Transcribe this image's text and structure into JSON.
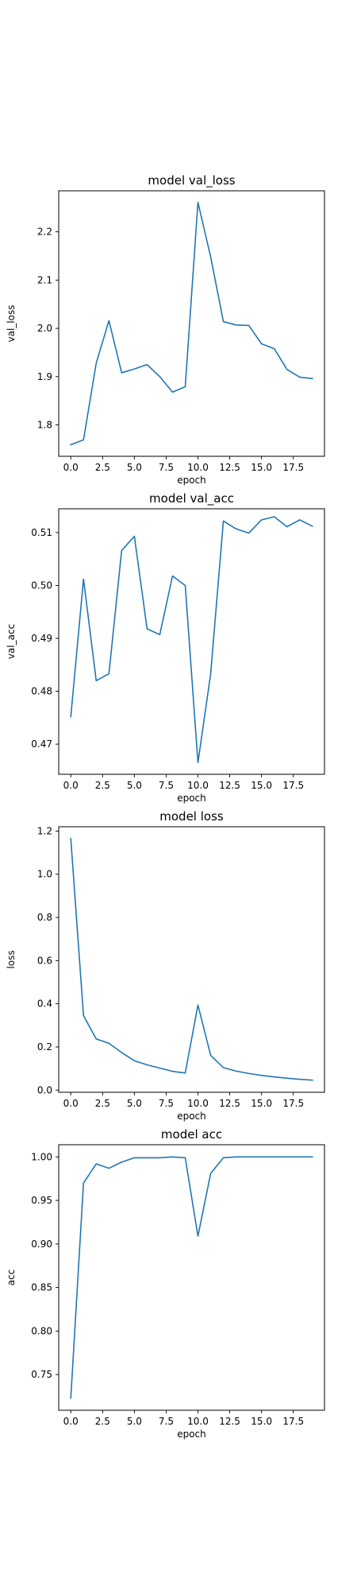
{
  "chart_data": [
    {
      "type": "line",
      "title": "model val_loss",
      "xlabel": "epoch",
      "ylabel": "val_loss",
      "xlim": [
        -0.95,
        19.95
      ],
      "ylim": [
        1.735,
        2.285
      ],
      "xticks": [
        0.0,
        2.5,
        5.0,
        7.5,
        10.0,
        12.5,
        15.0,
        17.5
      ],
      "xtick_labels": [
        "0.0",
        "2.5",
        "5.0",
        "7.5",
        "10.0",
        "12.5",
        "15.0",
        "17.5"
      ],
      "yticks": [
        1.8,
        1.9,
        2.0,
        2.1,
        2.2
      ],
      "ytick_labels": [
        "1.8",
        "1.9",
        "2.0",
        "2.1",
        "2.2"
      ],
      "series": [
        {
          "name": "val_loss",
          "color": "#1f77b4",
          "x": [
            0,
            1,
            2,
            3,
            4,
            5,
            6,
            7,
            8,
            9,
            10,
            11,
            12,
            13,
            14,
            15,
            16,
            17,
            18,
            19
          ],
          "values": [
            1.759,
            1.769,
            1.928,
            2.016,
            1.908,
            1.916,
            1.925,
            1.9,
            1.868,
            1.879,
            2.261,
            2.148,
            2.014,
            2.007,
            2.006,
            1.968,
            1.958,
            1.915,
            1.899,
            1.896
          ]
        }
      ]
    },
    {
      "type": "line",
      "title": "model val_acc",
      "xlabel": "epoch",
      "ylabel": "val_acc",
      "xlim": [
        -0.95,
        19.95
      ],
      "ylim": [
        0.4643,
        0.5145
      ],
      "xticks": [
        0.0,
        2.5,
        5.0,
        7.5,
        10.0,
        12.5,
        15.0,
        17.5
      ],
      "xtick_labels": [
        "0.0",
        "2.5",
        "5.0",
        "7.5",
        "10.0",
        "12.5",
        "15.0",
        "17.5"
      ],
      "yticks": [
        0.47,
        0.48,
        0.49,
        0.5,
        0.51
      ],
      "ytick_labels": [
        "0.47",
        "0.48",
        "0.49",
        "0.50",
        "0.51"
      ],
      "series": [
        {
          "name": "val_acc",
          "color": "#1f77b4",
          "x": [
            0,
            1,
            2,
            3,
            4,
            5,
            6,
            7,
            8,
            9,
            10,
            11,
            12,
            13,
            14,
            15,
            16,
            17,
            18,
            19
          ],
          "values": [
            0.4752,
            0.5012,
            0.482,
            0.4833,
            0.5066,
            0.5093,
            0.4918,
            0.4907,
            0.5018,
            0.5,
            0.4665,
            0.4833,
            0.5122,
            0.5107,
            0.5099,
            0.5124,
            0.513,
            0.5111,
            0.5124,
            0.5112
          ]
        }
      ]
    },
    {
      "type": "line",
      "title": "model loss",
      "xlabel": "epoch",
      "ylabel": "loss",
      "xlim": [
        -0.95,
        19.95
      ],
      "ylim": [
        -0.01,
        1.22
      ],
      "xticks": [
        0.0,
        2.5,
        5.0,
        7.5,
        10.0,
        12.5,
        15.0,
        17.5
      ],
      "xtick_labels": [
        "0.0",
        "2.5",
        "5.0",
        "7.5",
        "10.0",
        "12.5",
        "15.0",
        "17.5"
      ],
      "yticks": [
        0.0,
        0.2,
        0.4,
        0.6,
        0.8,
        1.0,
        1.2
      ],
      "ytick_labels": [
        "0.0",
        "0.2",
        "0.4",
        "0.6",
        "0.8",
        "1.0",
        "1.2"
      ],
      "series": [
        {
          "name": "loss",
          "color": "#1f77b4",
          "x": [
            0,
            1,
            2,
            3,
            4,
            5,
            6,
            7,
            8,
            9,
            10,
            11,
            12,
            13,
            14,
            15,
            16,
            17,
            18,
            19
          ],
          "values": [
            1.165,
            0.345,
            0.237,
            0.217,
            0.174,
            0.136,
            0.117,
            0.102,
            0.087,
            0.079,
            0.394,
            0.161,
            0.104,
            0.088,
            0.077,
            0.068,
            0.061,
            0.055,
            0.05,
            0.046
          ]
        }
      ]
    },
    {
      "type": "line",
      "title": "model acc",
      "xlabel": "epoch",
      "ylabel": "acc",
      "xlim": [
        -0.95,
        19.95
      ],
      "ylim": [
        0.709,
        1.014
      ],
      "xticks": [
        0.0,
        2.5,
        5.0,
        7.5,
        10.0,
        12.5,
        15.0,
        17.5
      ],
      "xtick_labels": [
        "0.0",
        "2.5",
        "5.0",
        "7.5",
        "10.0",
        "12.5",
        "15.0",
        "17.5"
      ],
      "yticks": [
        0.75,
        0.8,
        0.85,
        0.9,
        0.95,
        1.0
      ],
      "ytick_labels": [
        "0.75",
        "0.80",
        "0.85",
        "0.90",
        "0.95",
        "1.00"
      ],
      "series": [
        {
          "name": "acc",
          "color": "#1f77b4",
          "x": [
            0,
            1,
            2,
            3,
            4,
            5,
            6,
            7,
            8,
            9,
            10,
            11,
            12,
            13,
            14,
            15,
            16,
            17,
            18,
            19
          ],
          "values": [
            0.723,
            0.97,
            0.992,
            0.987,
            0.994,
            0.999,
            0.999,
            0.999,
            1.0,
            0.999,
            0.909,
            0.981,
            0.999,
            1.0,
            1.0,
            1.0,
            1.0,
            1.0,
            1.0,
            1.0
          ]
        }
      ]
    }
  ]
}
